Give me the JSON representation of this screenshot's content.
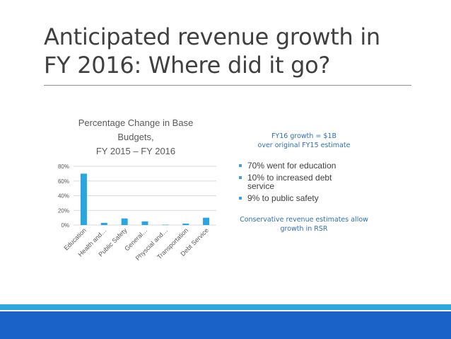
{
  "slide": {
    "title_line1": "Anticipated revenue growth in",
    "title_line2": "FY 2016: Where did it go?",
    "growth_line1": "FY16 growth = $1B",
    "growth_line2": "over original FY15 estimate",
    "bullets": [
      {
        "line1": "70% went for education",
        "line2": ""
      },
      {
        "line1": "10% to increased debt",
        "line2": "service"
      },
      {
        "line1": "9% to public safety",
        "line2": ""
      }
    ],
    "note_line1": "Conservative revenue estimates allow",
    "note_line2": "growth in RSR"
  },
  "colors": {
    "bar": "#29a6e0",
    "accent_text": "#2e6fb5",
    "band_light": "#2ca8e0",
    "band_dark": "#1b62c8"
  },
  "chart_data": {
    "type": "bar",
    "title_lines": [
      "Percentage Change in Base",
      "Budgets,",
      "FY 2015 – FY 2016"
    ],
    "categories": [
      "Education",
      "Health and…",
      "Public Safety",
      "General…",
      "Physcial and…",
      "Transportation",
      "Debt Service"
    ],
    "values": [
      0.7,
      0.03,
      0.09,
      0.05,
      0.005,
      0.02,
      0.1
    ],
    "ylim": [
      0,
      0.8
    ],
    "yticks": [
      0,
      0.2,
      0.4,
      0.6,
      0.8
    ],
    "ytick_labels": [
      "0%",
      "20%",
      "40%",
      "60%",
      "80%"
    ],
    "grid": true,
    "legend": "none",
    "xlabel": "",
    "ylabel": ""
  }
}
